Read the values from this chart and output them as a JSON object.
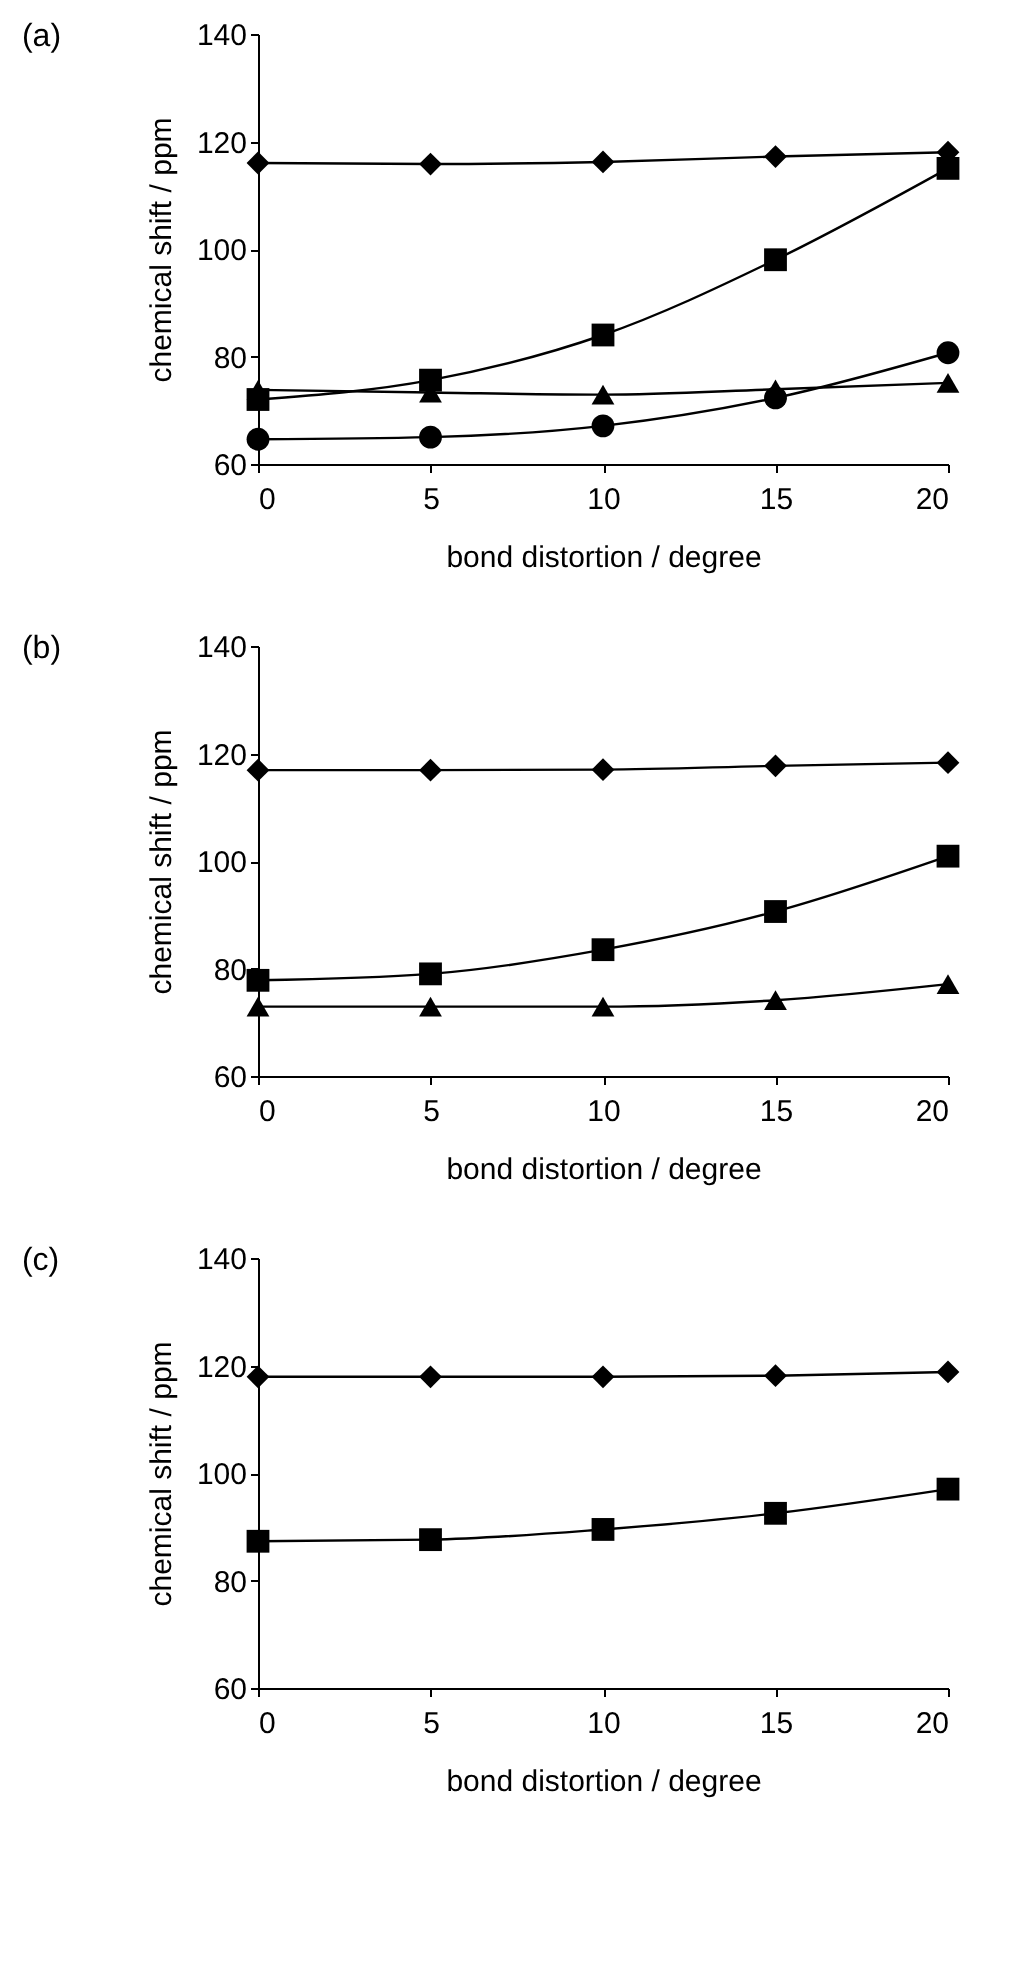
{
  "chart_data": [
    {
      "type": "line",
      "title": "(a)",
      "xlabel": "bond distortion / degree",
      "ylabel": "chemical shift / ppm",
      "x": [
        0,
        5,
        10,
        15,
        20
      ],
      "xlim": [
        0,
        20
      ],
      "xticks": [
        0,
        5,
        10,
        15,
        20
      ],
      "ylim": [
        60,
        140
      ],
      "yticks": [
        60,
        80,
        100,
        120,
        140
      ],
      "grid": false,
      "legend": false,
      "series": [
        {
          "color": "#000000",
          "marker": "diamond",
          "values": [
            116,
            115.8,
            116.2,
            117.2,
            118
          ]
        },
        {
          "color": "#000000",
          "marker": "square",
          "values": [
            72,
            75.6,
            84,
            98,
            115
          ]
        },
        {
          "color": "#000000",
          "marker": "circle",
          "values": [
            64.6,
            65,
            67.1,
            72.3,
            80.7
          ]
        },
        {
          "color": "#000000",
          "marker": "triangle",
          "values": [
            73.8,
            73.3,
            72.9,
            73.9,
            75.1
          ]
        }
      ]
    },
    {
      "type": "line",
      "title": "(b)",
      "xlabel": "bond distortion / degree",
      "ylabel": "chemical shift / ppm",
      "x": [
        0,
        5,
        10,
        15,
        20
      ],
      "xlim": [
        0,
        20
      ],
      "xticks": [
        0,
        5,
        10,
        15,
        20
      ],
      "ylim": [
        60,
        140
      ],
      "yticks": [
        60,
        80,
        100,
        120,
        140
      ],
      "grid": false,
      "legend": false,
      "series": [
        {
          "color": "#000000",
          "marker": "diamond",
          "values": [
            116.9,
            116.9,
            117,
            117.7,
            118.3
          ]
        },
        {
          "color": "#000000",
          "marker": "square",
          "values": [
            77.8,
            79,
            83.5,
            90.6,
            100.9
          ]
        },
        {
          "color": "#000000",
          "marker": "triangle",
          "values": [
            72.9,
            72.9,
            72.9,
            74.1,
            77.1
          ]
        }
      ]
    },
    {
      "type": "line",
      "title": "(c)",
      "xlabel": "bond distortion / degree",
      "ylabel": "chemical shift / ppm",
      "x": [
        0,
        5,
        10,
        15,
        20
      ],
      "xlim": [
        0,
        20
      ],
      "xticks": [
        0,
        5,
        10,
        15,
        20
      ],
      "ylim": [
        60,
        140
      ],
      "yticks": [
        60,
        80,
        100,
        120,
        140
      ],
      "grid": false,
      "legend": false,
      "series": [
        {
          "color": "#000000",
          "marker": "diamond",
          "values": [
            117.9,
            117.9,
            117.9,
            118.1,
            118.8
          ]
        },
        {
          "color": "#000000",
          "marker": "square",
          "values": [
            87.3,
            87.6,
            89.5,
            92.5,
            97
          ]
        }
      ]
    }
  ]
}
